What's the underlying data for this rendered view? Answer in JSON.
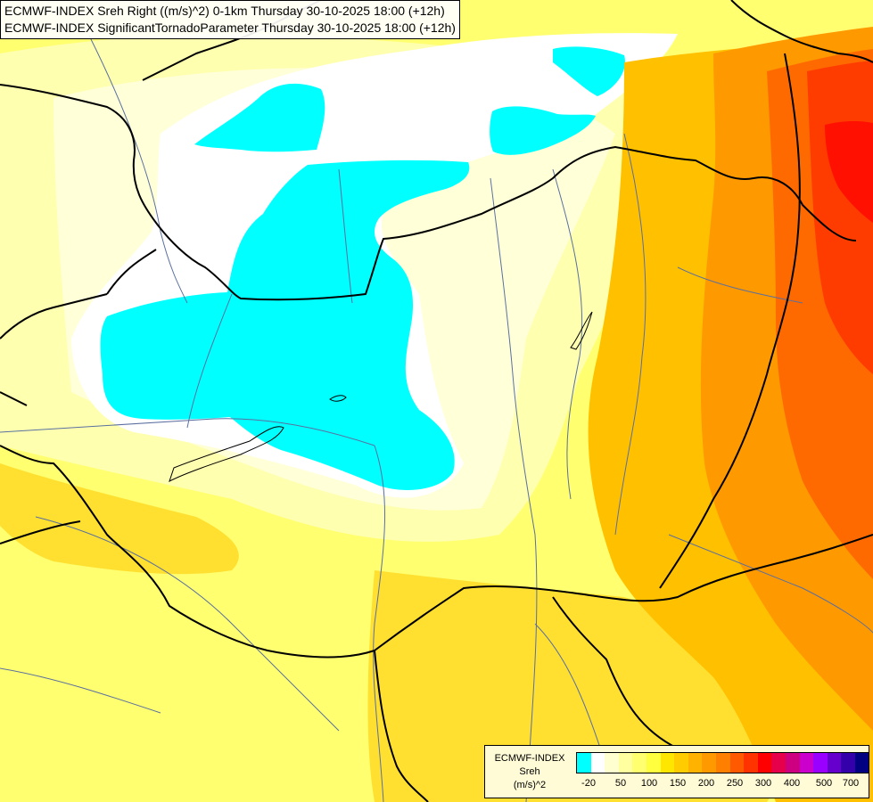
{
  "header": {
    "line1": "ECMWF-INDEX Sreh Right ((m/s)^2) 0-1km Thursday 30-10-2025 18:00 (+12h)",
    "line2": "ECMWF-INDEX SignificantTornadoParameter Thursday 30-10-2025 18:00 (+12h)"
  },
  "legend": {
    "title_line1": "ECMWF-INDEX",
    "title_line2": "Sreh",
    "title_line3": "(m/s)^2",
    "colors": [
      "#00ffff",
      "#ffffff",
      "#ffffd0",
      "#ffffa0",
      "#ffff70",
      "#ffff40",
      "#ffe600",
      "#ffcc00",
      "#ffb300",
      "#ff9900",
      "#ff7f00",
      "#ff5a00",
      "#ff3300",
      "#ff0000",
      "#e6004c",
      "#cc0080",
      "#cc00cc",
      "#9900ff",
      "#6600cc",
      "#3300aa",
      "#000080"
    ],
    "ticks": [
      "-20",
      "50",
      "100",
      "150",
      "200",
      "250",
      "300",
      "400",
      "500",
      "700"
    ]
  },
  "map": {
    "palette": {
      "cyan": "#00ffff",
      "white": "#ffffff",
      "pale": "#ffffc0",
      "light_yellow": "#ffff80",
      "yellow": "#ffff40",
      "gold": "#ffe000",
      "amber": "#ffc000",
      "orange": "#ff9900",
      "dark_orange": "#ff6a00",
      "red_orange": "#ff3c00",
      "red": "#ff0000",
      "border": "#000000",
      "river": "#5a6fa0"
    }
  }
}
